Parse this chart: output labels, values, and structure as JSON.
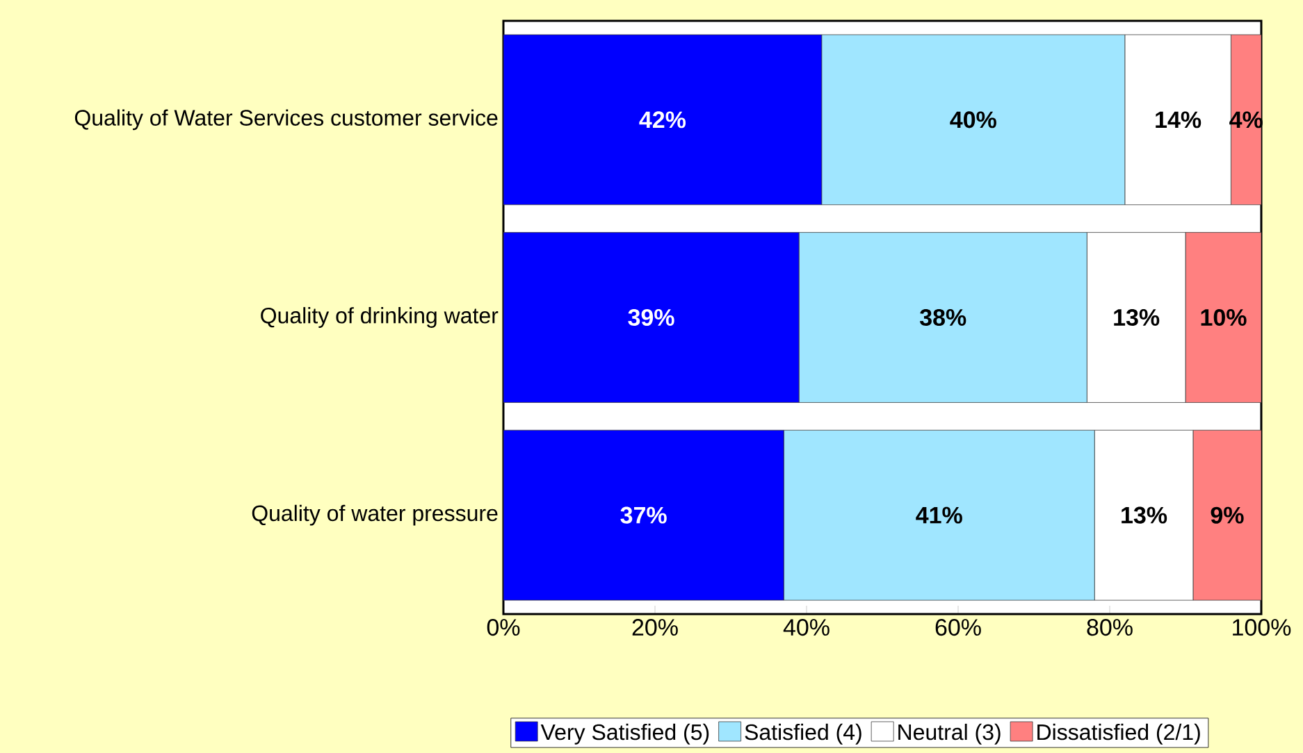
{
  "chart_data": {
    "type": "bar",
    "orientation": "horizontal",
    "stacked": true,
    "categories": [
      "Quality of Water Services customer service",
      "Quality of drinking water",
      "Quality of water pressure"
    ],
    "series": [
      {
        "name": "Very Satisfied (5)",
        "color": "#0000ff",
        "values": [
          42,
          39,
          37
        ],
        "value_labels": [
          "42%",
          "39%",
          "37%"
        ]
      },
      {
        "name": "Satisfied (4)",
        "color": "#a0e6ff",
        "values": [
          40,
          38,
          41
        ],
        "value_labels": [
          "40%",
          "38%",
          "41%"
        ]
      },
      {
        "name": "Neutral (3)",
        "color": "#ffffff",
        "values": [
          14,
          13,
          13
        ],
        "value_labels": [
          "14%",
          "13%",
          "13%"
        ]
      },
      {
        "name": "Dissatisfied (2/1)",
        "color": "#ff8080",
        "values": [
          4,
          10,
          9
        ],
        "value_labels": [
          "4%",
          "10%",
          "9%"
        ]
      }
    ],
    "xlim": [
      0,
      100
    ],
    "xticks": [
      {
        "value": 0,
        "label": "0%"
      },
      {
        "value": 20,
        "label": "20%"
      },
      {
        "value": 40,
        "label": "40%"
      },
      {
        "value": 60,
        "label": "60%"
      },
      {
        "value": 80,
        "label": "80%"
      },
      {
        "value": 100,
        "label": "100%"
      }
    ],
    "grid": false,
    "legend": "bottom"
  }
}
